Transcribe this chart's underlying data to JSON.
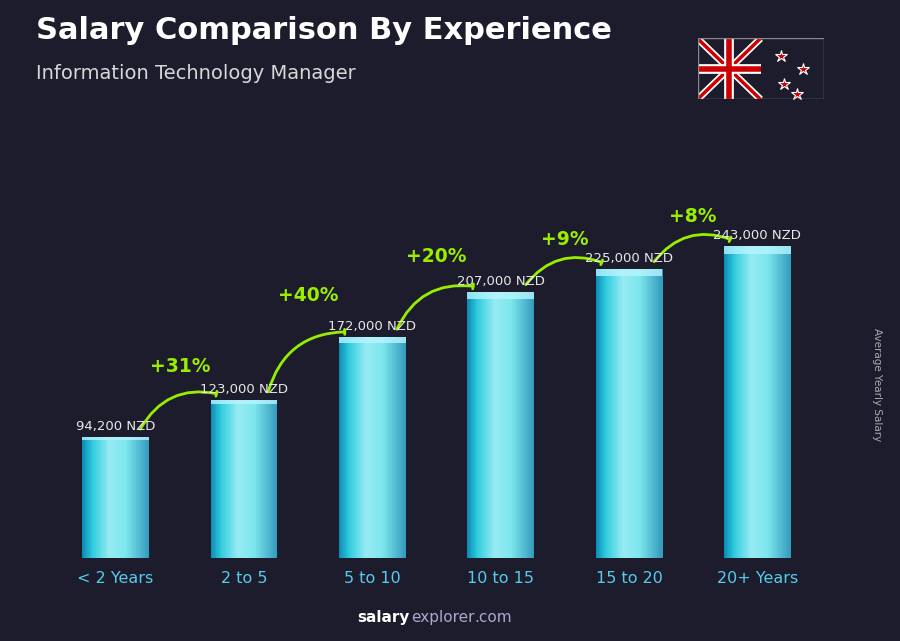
{
  "title": "Salary Comparison By Experience",
  "subtitle": "Information Technology Manager",
  "categories": [
    "< 2 Years",
    "2 to 5",
    "5 to 10",
    "10 to 15",
    "15 to 20",
    "20+ Years"
  ],
  "values": [
    94200,
    123000,
    172000,
    207000,
    225000,
    243000
  ],
  "value_labels": [
    "94,200 NZD",
    "123,000 NZD",
    "172,000 NZD",
    "207,000 NZD",
    "225,000 NZD",
    "243,000 NZD"
  ],
  "pct_changes": [
    "+31%",
    "+40%",
    "+20%",
    "+9%",
    "+8%"
  ],
  "bar_main_color": "#1ac8e8",
  "bar_dark_color": "#0a7090",
  "bar_light_color": "#80e8ff",
  "bar_top_color": "#90f0ff",
  "bg_color": "#1c1c2c",
  "title_color": "#ffffff",
  "subtitle_color": "#d8d8d8",
  "value_label_color": "#e8e8e8",
  "pct_color": "#99ee00",
  "xticklabel_color": "#55ccee",
  "footer_salary_color": "#ffffff",
  "footer_explorer_color": "#aaaaaa",
  "ylabel_text": "Average Yearly Salary",
  "ylabel_color": "#aaaaaa",
  "ylim_max": 280000,
  "bar_width": 0.52
}
